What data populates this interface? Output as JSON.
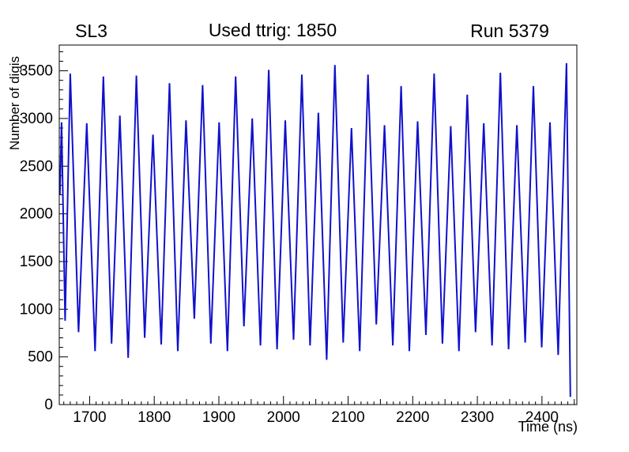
{
  "titles": {
    "left": "SL3",
    "center": "Used ttrig: 1850",
    "right": "Run 5379"
  },
  "chart_data": {
    "type": "line",
    "title": "Used ttrig: 1850",
    "subtitle_left": "SL3",
    "subtitle_right": "Run 5379",
    "xlabel": "Time (ns)",
    "ylabel": "Number of digis",
    "xlim": [
      1653,
      2454
    ],
    "ylim": [
      0,
      3770
    ],
    "xticks": [
      1700,
      1800,
      1900,
      2000,
      2100,
      2200,
      2300,
      2400
    ],
    "yticks": [
      0,
      500,
      1000,
      1500,
      2000,
      2500,
      3000,
      3500
    ],
    "x_minor_step": 10,
    "x_medium_step": 50,
    "y_minor_step": 100,
    "grid": false,
    "legend": "none",
    "line_color": "#1111cc",
    "axis_color": "#000000",
    "background_color": "#ffffff",
    "points": [
      [
        1654,
        2200
      ],
      [
        1656.5,
        2960
      ],
      [
        1662,
        880
      ],
      [
        1670,
        3470
      ],
      [
        1682.8,
        760
      ],
      [
        1695.6,
        2950
      ],
      [
        1708.4,
        560
      ],
      [
        1721.2,
        3440
      ],
      [
        1734,
        640
      ],
      [
        1746.8,
        3030
      ],
      [
        1759.6,
        490
      ],
      [
        1772.4,
        3450
      ],
      [
        1785.2,
        700
      ],
      [
        1798,
        2830
      ],
      [
        1810.8,
        630
      ],
      [
        1823.6,
        3370
      ],
      [
        1836.4,
        560
      ],
      [
        1849.2,
        2980
      ],
      [
        1862,
        900
      ],
      [
        1874.8,
        3350
      ],
      [
        1887.6,
        640
      ],
      [
        1900.4,
        2960
      ],
      [
        1913.2,
        560
      ],
      [
        1926,
        3440
      ],
      [
        1938.8,
        820
      ],
      [
        1951.6,
        3000
      ],
      [
        1964.4,
        620
      ],
      [
        1977.2,
        3510
      ],
      [
        1990,
        580
      ],
      [
        2002.8,
        2980
      ],
      [
        2015.6,
        680
      ],
      [
        2028.4,
        3460
      ],
      [
        2041.2,
        620
      ],
      [
        2054,
        3060
      ],
      [
        2066.8,
        470
      ],
      [
        2079.6,
        3560
      ],
      [
        2092.4,
        650
      ],
      [
        2105.2,
        2900
      ],
      [
        2118,
        560
      ],
      [
        2130.8,
        3460
      ],
      [
        2143.6,
        840
      ],
      [
        2156.4,
        2930
      ],
      [
        2169.2,
        620
      ],
      [
        2182,
        3340
      ],
      [
        2194.8,
        560
      ],
      [
        2207.6,
        2970
      ],
      [
        2220.4,
        730
      ],
      [
        2233.2,
        3470
      ],
      [
        2246,
        640
      ],
      [
        2258.8,
        2920
      ],
      [
        2271.6,
        560
      ],
      [
        2284.4,
        3250
      ],
      [
        2297.2,
        760
      ],
      [
        2310,
        2950
      ],
      [
        2322.8,
        620
      ],
      [
        2335.6,
        3480
      ],
      [
        2348.4,
        580
      ],
      [
        2361.2,
        2930
      ],
      [
        2374,
        650
      ],
      [
        2386.8,
        3340
      ],
      [
        2399.6,
        600
      ],
      [
        2412.4,
        2960
      ],
      [
        2425.2,
        520
      ],
      [
        2438,
        3580
      ],
      [
        2444,
        80
      ]
    ]
  }
}
